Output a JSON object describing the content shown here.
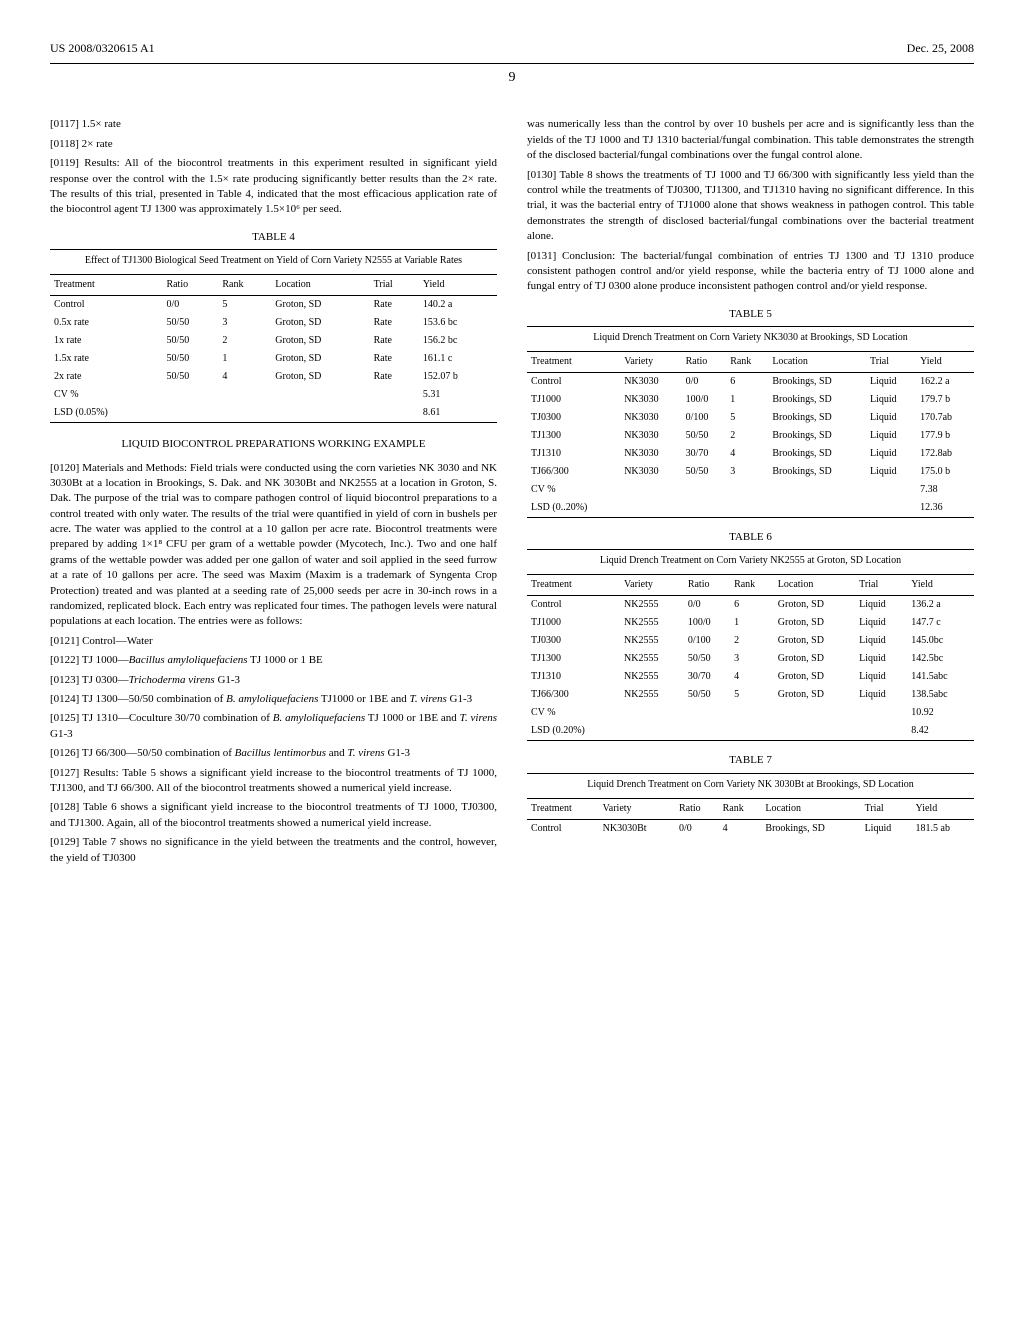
{
  "header": {
    "left": "US 2008/0320615 A1",
    "right": "Dec. 25, 2008"
  },
  "page_number": "9",
  "left_col_top_paragraphs": {
    "p0117": "[0117]    1.5× rate",
    "p0118": "[0118]    2× rate",
    "p0119": "[0119]    Results: All of the biocontrol treatments in this experiment resulted in significant yield response over the control with the 1.5× rate producing significantly better results than the 2× rate. The results of this trial, presented in Table 4, indicated that the most efficacious application rate of the biocontrol agent TJ 1300 was approximately 1.5×10⁶ per seed."
  },
  "table4": {
    "label": "TABLE 4",
    "caption": "Effect of TJ1300 Biological Seed Treatment on Yield of Corn Variety N2555 at Variable Rates",
    "columns": [
      "Treatment",
      "Ratio",
      "Rank",
      "Location",
      "Trial",
      "Yield"
    ],
    "rows": [
      [
        "Control",
        "0/0",
        "5",
        "Groton, SD",
        "Rate",
        "140.2 a"
      ],
      [
        "0.5x rate",
        "50/50",
        "3",
        "Groton, SD",
        "Rate",
        "153.6 bc"
      ],
      [
        "1x rate",
        "50/50",
        "2",
        "Groton, SD",
        "Rate",
        "156.2 bc"
      ],
      [
        "1.5x rate",
        "50/50",
        "1",
        "Groton, SD",
        "Rate",
        "161.1 c"
      ],
      [
        "2x rate",
        "50/50",
        "4",
        "Groton, SD",
        "Rate",
        "152.07 b"
      ],
      [
        "CV %",
        "",
        "",
        "",
        "",
        "5.31"
      ],
      [
        "LSD (0.05%)",
        "",
        "",
        "",
        "",
        "8.61"
      ]
    ]
  },
  "section_title": "LIQUID BIOCONTROL PREPARATIONS WORKING EXAMPLE",
  "left_col_mid_paragraphs": {
    "p0120": "[0120]    Materials and Methods: Field trials were conducted using the corn varieties NK 3030 and NK 3030Bt at a location in Brookings, S. Dak. and NK 3030Bt and NK2555 at a location in Groton, S. Dak. The purpose of the trial was to compare pathogen control of liquid biocontrol preparations to a control treated with only water. The results of the trial were quantified in yield of corn in bushels per acre. The water was applied to the control at a 10 gallon per acre rate. Biocontrol treatments were prepared by adding 1×1⁸ CFU per gram of a wettable powder (Mycotech, Inc.). Two and one half grams of the wettable powder was added per one gallon of water and soil applied in the seed furrow at a rate of 10 gallons per acre. The seed was Maxim (Maxim is a trademark of Syngenta Crop Protection) treated and was planted at a seeding rate of 25,000 seeds per acre in 30-inch rows in a randomized, replicated block. Each entry was replicated four times. The pathogen levels were natural populations at each location. The entries were as follows:",
    "p0121": "[0121]    Control—Water",
    "p0122_a": "[0122]    TJ 1000—",
    "p0122_i": "Bacillus amyloliquefaciens",
    "p0122_b": " TJ 1000 or 1 BE",
    "p0123_a": "[0123]    TJ 0300—",
    "p0123_i": "Trichoderma virens",
    "p0123_b": " G1-3",
    "p0124_a": "[0124]    TJ 1300—50/50 combination of ",
    "p0124_i": "B. amyloliquefaciens",
    "p0124_b": " TJ1000 or 1BE and ",
    "p0124_i2": "T. virens",
    "p0124_c": " G1-3",
    "p0125_a": "[0125]    TJ 1310—Coculture 30/70 combination of ",
    "p0125_i": "B. amyloliquefaciens",
    "p0125_b": " TJ 1000 or 1BE and ",
    "p0125_i2": "T. virens",
    "p0125_c": " G1-3",
    "p0126_a": "[0126]    TJ 66/300—50/50 combination of ",
    "p0126_i": "Bacillus lentimorbus",
    "p0126_b": " and ",
    "p0126_i2": "T. virens",
    "p0126_c": " G1-3",
    "p0127": "[0127]    Results: Table 5 shows a significant yield increase to the biocontrol treatments of TJ 1000, TJ1300, and TJ 66/300. All of the biocontrol treatments showed a numerical yield increase.",
    "p0128": "[0128]    Table 6 shows a significant yield increase to the biocontrol treatments of TJ 1000, TJ0300, and TJ1300. Again, all of the biocontrol treatments showed a numerical yield increase.",
    "p0129": "[0129]    Table 7 shows no significance in the yield between the treatments and the control, however, the yield of TJ0300"
  },
  "right_col_top_paragraphs": {
    "p_cont": "was numerically less than the control by over 10 bushels per acre and is significantly less than the yields of the TJ 1000 and TJ 1310 bacterial/fungal combination. This table demonstrates the strength of the disclosed bacterial/fungal combinations over the fungal control alone.",
    "p0130": "[0130]    Table 8 shows the treatments of TJ 1000 and TJ 66/300 with significantly less yield than the control while the treatments of TJ0300, TJ1300, and TJ1310 having no significant difference. In this trial, it was the bacterial entry of TJ1000 alone that shows weakness in pathogen control. This table demonstrates the strength of disclosed bacterial/fungal combinations over the bacterial treatment alone.",
    "p0131": "[0131]    Conclusion: The bacterial/fungal combination of entries TJ 1300 and TJ 1310 produce consistent pathogen control and/or yield response, while the bacteria entry of TJ 1000 alone and fungal entry of TJ 0300 alone produce inconsistent pathogen control and/or yield response."
  },
  "table5": {
    "label": "TABLE 5",
    "caption": "Liquid Drench Treatment on Corn Variety NK3030 at Brookings, SD Location",
    "columns": [
      "Treatment",
      "Variety",
      "Ratio",
      "Rank",
      "Location",
      "Trial",
      "Yield"
    ],
    "rows": [
      [
        "Control",
        "NK3030",
        "0/0",
        "6",
        "Brookings, SD",
        "Liquid",
        "162.2 a"
      ],
      [
        "TJ1000",
        "NK3030",
        "100/0",
        "1",
        "Brookings, SD",
        "Liquid",
        "179.7 b"
      ],
      [
        "TJ0300",
        "NK3030",
        "0/100",
        "5",
        "Brookings, SD",
        "Liquid",
        "170.7ab"
      ],
      [
        "TJ1300",
        "NK3030",
        "50/50",
        "2",
        "Brookings, SD",
        "Liquid",
        "177.9 b"
      ],
      [
        "TJ1310",
        "NK3030",
        "30/70",
        "4",
        "Brookings, SD",
        "Liquid",
        "172.8ab"
      ],
      [
        "TJ66/300",
        "NK3030",
        "50/50",
        "3",
        "Brookings, SD",
        "Liquid",
        "175.0 b"
      ],
      [
        "CV %",
        "",
        "",
        "",
        "",
        "",
        "7.38"
      ],
      [
        "LSD (0..20%)",
        "",
        "",
        "",
        "",
        "",
        "12.36"
      ]
    ]
  },
  "table6": {
    "label": "TABLE 6",
    "caption": "Liquid Drench Treatment on Corn Variety NK2555 at Groton, SD Location",
    "columns": [
      "Treatment",
      "Variety",
      "Ratio",
      "Rank",
      "Location",
      "Trial",
      "Yield"
    ],
    "rows": [
      [
        "Control",
        "NK2555",
        "0/0",
        "6",
        "Groton, SD",
        "Liquid",
        "136.2 a"
      ],
      [
        "TJ1000",
        "NK2555",
        "100/0",
        "1",
        "Groton, SD",
        "Liquid",
        "147.7 c"
      ],
      [
        "TJ0300",
        "NK2555",
        "0/100",
        "2",
        "Groton, SD",
        "Liquid",
        "145.0bc"
      ],
      [
        "TJ1300",
        "NK2555",
        "50/50",
        "3",
        "Groton, SD",
        "Liquid",
        "142.5bc"
      ],
      [
        "TJ1310",
        "NK2555",
        "30/70",
        "4",
        "Groton, SD",
        "Liquid",
        "141.5abc"
      ],
      [
        "TJ66/300",
        "NK2555",
        "50/50",
        "5",
        "Groton, SD",
        "Liquid",
        "138.5abc"
      ],
      [
        "CV %",
        "",
        "",
        "",
        "",
        "",
        "10.92"
      ],
      [
        "LSD (0.20%)",
        "",
        "",
        "",
        "",
        "",
        "8.42"
      ]
    ]
  },
  "table7": {
    "label": "TABLE 7",
    "caption": "Liquid Drench Treatment on Corn Variety NK 3030Bt at Brookings, SD Location",
    "columns": [
      "Treatment",
      "Variety",
      "Ratio",
      "Rank",
      "Location",
      "Trial",
      "Yield"
    ],
    "rows": [
      [
        "Control",
        "NK3030Bt",
        "0/0",
        "4",
        "Brookings, SD",
        "Liquid",
        "181.5 ab"
      ]
    ]
  }
}
